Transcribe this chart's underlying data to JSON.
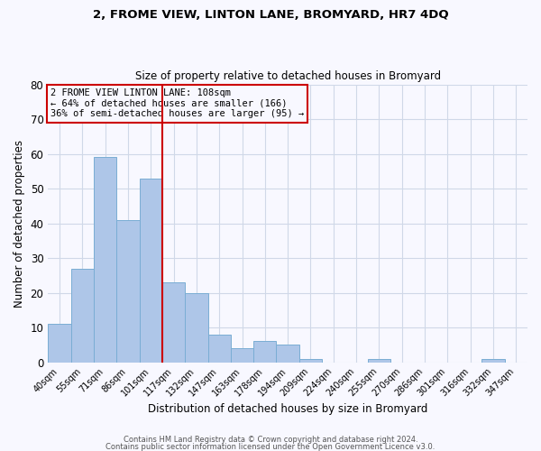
{
  "title": "2, FROME VIEW, LINTON LANE, BROMYARD, HR7 4DQ",
  "subtitle": "Size of property relative to detached houses in Bromyard",
  "xlabel": "Distribution of detached houses by size in Bromyard",
  "ylabel": "Number of detached properties",
  "bar_labels": [
    "40sqm",
    "55sqm",
    "71sqm",
    "86sqm",
    "101sqm",
    "117sqm",
    "132sqm",
    "147sqm",
    "163sqm",
    "178sqm",
    "194sqm",
    "209sqm",
    "224sqm",
    "240sqm",
    "255sqm",
    "270sqm",
    "286sqm",
    "301sqm",
    "316sqm",
    "332sqm",
    "347sqm"
  ],
  "bar_values": [
    11,
    27,
    59,
    41,
    53,
    23,
    20,
    8,
    4,
    6,
    5,
    1,
    0,
    0,
    1,
    0,
    0,
    0,
    0,
    1,
    0
  ],
  "bar_color": "#aec6e8",
  "bar_edge_color": "#7aadd4",
  "vline_color": "#cc0000",
  "vline_x_idx": 5,
  "ylim": [
    0,
    80
  ],
  "yticks": [
    0,
    10,
    20,
    30,
    40,
    50,
    60,
    70,
    80
  ],
  "annotation_title": "2 FROME VIEW LINTON LANE: 108sqm",
  "annotation_line1": "← 64% of detached houses are smaller (166)",
  "annotation_line2": "36% of semi-detached houses are larger (95) →",
  "annotation_box_color": "#cc0000",
  "footer_line1": "Contains HM Land Registry data © Crown copyright and database right 2024.",
  "footer_line2": "Contains public sector information licensed under the Open Government Licence v3.0.",
  "bg_color": "#f8f8ff",
  "grid_color": "#d0d8e8"
}
